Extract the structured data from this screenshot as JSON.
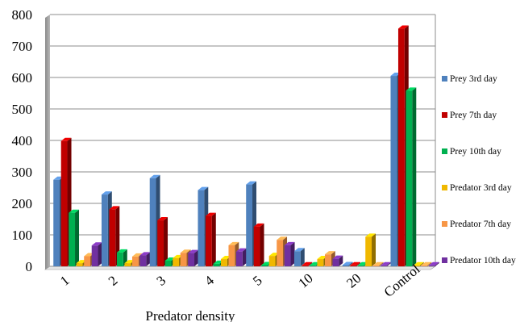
{
  "chart_data": {
    "type": "bar",
    "title": "",
    "xlabel": "Predator density",
    "ylabel": "",
    "ylim": [
      0,
      800
    ],
    "yticks": [
      0,
      100,
      200,
      300,
      400,
      500,
      600,
      700,
      800
    ],
    "grid": true,
    "legend_position": "right",
    "categories": [
      "1",
      "2",
      "3",
      "4",
      "5",
      "10",
      "20",
      "Control"
    ],
    "series": [
      {
        "name": "Prey 3rd day",
        "color": "#4f81bd",
        "values": [
          275,
          228,
          280,
          242,
          260,
          48,
          4,
          605
        ]
      },
      {
        "name": "Prey 7th day",
        "color": "#c00000",
        "values": [
          398,
          181,
          146,
          160,
          126,
          2,
          2,
          755
        ]
      },
      {
        "name": "Prey 10th day",
        "color": "#00b050",
        "values": [
          170,
          44,
          18,
          8,
          4,
          2,
          2,
          558
        ]
      },
      {
        "name": "Predator 3rd day",
        "color": "#f0b800",
        "values": [
          10,
          10,
          26,
          23,
          33,
          23,
          94,
          0
        ]
      },
      {
        "name": "Predator 7th day",
        "color": "#f79646",
        "values": [
          32,
          31,
          43,
          67,
          84,
          38,
          0,
          0
        ]
      },
      {
        "name": "Predator 10th day",
        "color": "#7030a0",
        "values": [
          66,
          35,
          42,
          47,
          67,
          24,
          0,
          0
        ]
      }
    ]
  }
}
